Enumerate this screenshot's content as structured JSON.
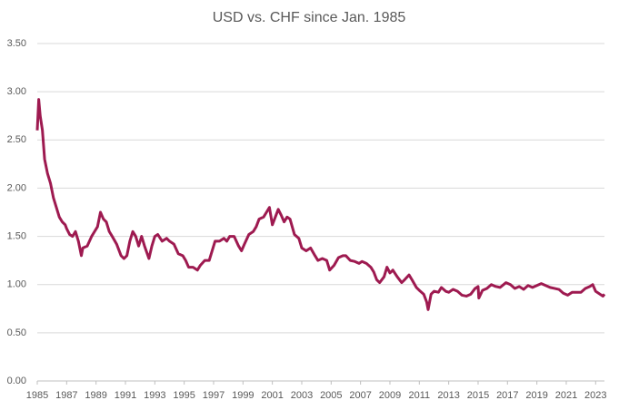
{
  "chart_data": {
    "type": "line",
    "title": "USD vs. CHF since Jan. 1985",
    "color": "#9e1a50",
    "grid": true,
    "xlim": [
      1985,
      2023.6
    ],
    "xticks": [
      1985,
      1987,
      1989,
      1991,
      1993,
      1995,
      1997,
      1999,
      2001,
      2003,
      2005,
      2007,
      2009,
      2011,
      2013,
      2015,
      2017,
      2019,
      2021,
      2023
    ],
    "ylim": [
      0,
      3.5
    ],
    "yticks": [
      {
        "value": 0,
        "label": "0.00"
      },
      {
        "value": 0.5,
        "label": "0.50"
      },
      {
        "value": 1,
        "label": "1.00"
      },
      {
        "value": 1.5,
        "label": "1.50"
      },
      {
        "value": 2,
        "label": "2.00"
      },
      {
        "value": 2.5,
        "label": "2.50"
      },
      {
        "value": 3,
        "label": "3.00"
      },
      {
        "value": 3.5,
        "label": "3.50"
      }
    ],
    "x": [
      1985.0,
      1985.1,
      1985.2,
      1985.35,
      1985.5,
      1985.7,
      1985.9,
      1986.1,
      1986.3,
      1986.5,
      1986.7,
      1986.9,
      1987.0,
      1987.2,
      1987.4,
      1987.6,
      1987.8,
      1988.0,
      1988.1,
      1988.4,
      1988.7,
      1988.9,
      1989.1,
      1989.3,
      1989.5,
      1989.7,
      1989.9,
      1990.1,
      1990.4,
      1990.7,
      1990.9,
      1991.1,
      1991.3,
      1991.5,
      1991.7,
      1991.9,
      1992.1,
      1992.3,
      1992.6,
      1992.8,
      1993.0,
      1993.2,
      1993.5,
      1993.8,
      1994.0,
      1994.3,
      1994.6,
      1994.9,
      1995.1,
      1995.3,
      1995.6,
      1995.9,
      1996.1,
      1996.4,
      1996.7,
      1996.9,
      1997.1,
      1997.4,
      1997.7,
      1997.9,
      1998.1,
      1998.4,
      1998.7,
      1998.9,
      1999.1,
      1999.4,
      1999.7,
      1999.9,
      2000.1,
      2000.4,
      2000.6,
      2000.8,
      2001.0,
      2001.2,
      2001.4,
      2001.6,
      2001.8,
      2002.0,
      2002.2,
      2002.5,
      2002.8,
      2003.0,
      2003.3,
      2003.6,
      2003.9,
      2004.1,
      2004.4,
      2004.7,
      2004.9,
      2005.2,
      2005.5,
      2005.8,
      2006.0,
      2006.3,
      2006.6,
      2006.9,
      2007.1,
      2007.4,
      2007.7,
      2007.9,
      2008.1,
      2008.3,
      2008.6,
      2008.8,
      2009.0,
      2009.2,
      2009.5,
      2009.8,
      2010.0,
      2010.3,
      2010.5,
      2010.8,
      2011.0,
      2011.3,
      2011.5,
      2011.6,
      2011.8,
      2012.0,
      2012.3,
      2012.5,
      2012.8,
      2013.0,
      2013.3,
      2013.6,
      2013.9,
      2014.2,
      2014.5,
      2014.8,
      2015.0,
      2015.05,
      2015.3,
      2015.6,
      2015.9,
      2016.2,
      2016.5,
      2016.9,
      2017.2,
      2017.5,
      2017.8,
      2018.1,
      2018.4,
      2018.7,
      2019.0,
      2019.3,
      2019.6,
      2019.9,
      2020.2,
      2020.5,
      2020.8,
      2021.1,
      2021.4,
      2021.7,
      2022.0,
      2022.3,
      2022.6,
      2022.8,
      2023.0,
      2023.3,
      2023.5,
      2023.6
    ],
    "values": [
      2.6,
      2.92,
      2.75,
      2.6,
      2.3,
      2.15,
      2.05,
      1.9,
      1.8,
      1.7,
      1.65,
      1.62,
      1.58,
      1.52,
      1.5,
      1.55,
      1.45,
      1.3,
      1.38,
      1.4,
      1.5,
      1.55,
      1.6,
      1.75,
      1.68,
      1.65,
      1.55,
      1.5,
      1.42,
      1.3,
      1.27,
      1.3,
      1.45,
      1.55,
      1.5,
      1.4,
      1.5,
      1.4,
      1.27,
      1.4,
      1.5,
      1.52,
      1.45,
      1.48,
      1.45,
      1.42,
      1.32,
      1.3,
      1.25,
      1.18,
      1.18,
      1.15,
      1.2,
      1.25,
      1.25,
      1.35,
      1.45,
      1.45,
      1.48,
      1.45,
      1.5,
      1.5,
      1.4,
      1.35,
      1.42,
      1.52,
      1.55,
      1.6,
      1.68,
      1.7,
      1.75,
      1.8,
      1.62,
      1.7,
      1.78,
      1.72,
      1.65,
      1.7,
      1.68,
      1.52,
      1.48,
      1.38,
      1.35,
      1.38,
      1.3,
      1.25,
      1.27,
      1.25,
      1.15,
      1.2,
      1.28,
      1.3,
      1.3,
      1.25,
      1.24,
      1.22,
      1.24,
      1.22,
      1.18,
      1.13,
      1.05,
      1.02,
      1.08,
      1.18,
      1.12,
      1.15,
      1.08,
      1.02,
      1.05,
      1.1,
      1.05,
      0.97,
      0.94,
      0.9,
      0.82,
      0.74,
      0.9,
      0.93,
      0.92,
      0.97,
      0.93,
      0.92,
      0.95,
      0.93,
      0.89,
      0.88,
      0.9,
      0.96,
      0.98,
      0.86,
      0.94,
      0.96,
      1.0,
      0.98,
      0.97,
      1.02,
      1.0,
      0.96,
      0.98,
      0.95,
      0.99,
      0.97,
      0.99,
      1.01,
      0.99,
      0.97,
      0.96,
      0.95,
      0.91,
      0.89,
      0.92,
      0.92,
      0.92,
      0.96,
      0.98,
      1.0,
      0.93,
      0.9,
      0.88,
      0.9
    ]
  }
}
